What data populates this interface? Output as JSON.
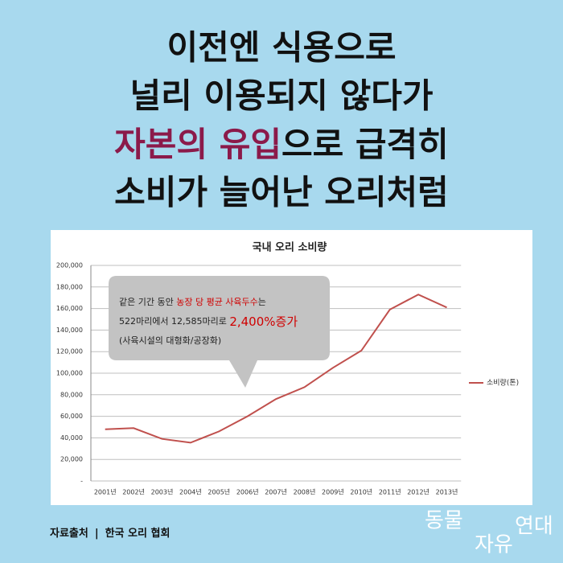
{
  "headline": {
    "line1": "이전엔 식용으로",
    "line2": "널리 이용되지 않다가",
    "line3_highlight": "자본의 유입",
    "line3_rest": "으로 급격히",
    "line4": "소비가 늘어난 오리처럼"
  },
  "chart_data": {
    "type": "line",
    "title": "국내 오리 소비량",
    "categories": [
      "2001년",
      "2002년",
      "2003년",
      "2004년",
      "2005년",
      "2006년",
      "2007년",
      "2008년",
      "2009년",
      "2010년",
      "2011년",
      "2012년",
      "2013년"
    ],
    "series": [
      {
        "name": "소비량(톤)",
        "color": "#c0504d",
        "values": [
          48000,
          49000,
          39000,
          35500,
          46000,
          60000,
          76000,
          87000,
          105000,
          121000,
          159000,
          173000,
          161000
        ]
      }
    ],
    "ylim": [
      0,
      200000
    ],
    "yticks": [
      {
        "value": 0,
        "label": "-"
      },
      {
        "value": 20000,
        "label": "20,000"
      },
      {
        "value": 40000,
        "label": "40,000"
      },
      {
        "value": 60000,
        "label": "60,000"
      },
      {
        "value": 80000,
        "label": "80,000"
      },
      {
        "value": 100000,
        "label": "100,000"
      },
      {
        "value": 120000,
        "label": "120,000"
      },
      {
        "value": 140000,
        "label": "140,000"
      },
      {
        "value": 160000,
        "label": "160,000"
      },
      {
        "value": 180000,
        "label": "180,000"
      },
      {
        "value": 200000,
        "label": "200,000"
      }
    ],
    "grid": true,
    "legend": "right",
    "annotation": {
      "line1_a": "같은 기간 동안 ",
      "line1_b": "농장 당 평균 사육두수",
      "line1_c": "는",
      "line2_a": "522마리에서 12,585마리로 ",
      "line2_b": "2,400%증가",
      "line3": "(사육시설의 대형화/공장화)"
    }
  },
  "source": {
    "label": "자료출처",
    "separator": "|",
    "name": "한국 오리 협회"
  },
  "logo": {
    "part1": "동물",
    "part2": "자유",
    "part3": "연대"
  }
}
